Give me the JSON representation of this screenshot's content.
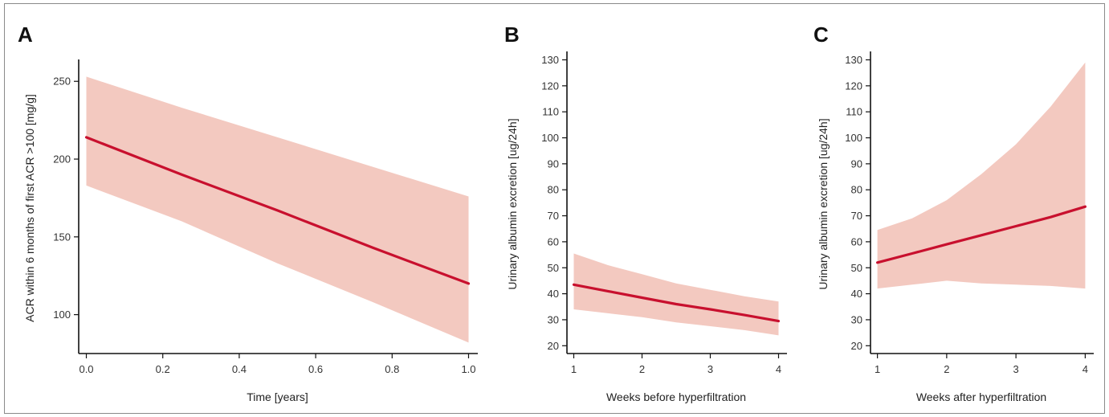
{
  "chart_data": [
    {
      "type": "line",
      "panel": "A",
      "title": "",
      "xlabel": "Time [years]",
      "ylabel": "ACR within 6 months of first ACR >100 [mg/g]",
      "xlim": [
        -0.02,
        1.02
      ],
      "ylim": [
        75,
        262
      ],
      "xticks": [
        0.0,
        0.2,
        0.4,
        0.6,
        0.8,
        1.0
      ],
      "xtick_labels": [
        "0.0",
        "0.2",
        "0.4",
        "0.6",
        "0.8",
        "1.0"
      ],
      "yticks": [
        100,
        150,
        200,
        250
      ],
      "ytick_labels": [
        "100",
        "150",
        "200",
        "250"
      ],
      "grid": false,
      "series": [
        {
          "x": [
            0.0,
            0.25,
            0.5,
            0.75,
            1.0
          ],
          "y": [
            214,
            190,
            167,
            143,
            120
          ],
          "lower": [
            183,
            160,
            133,
            108,
            82
          ],
          "upper": [
            253,
            233,
            214,
            195,
            176
          ]
        }
      ],
      "colors": {
        "line": "#c8102e",
        "band": "#f3c9c0"
      }
    },
    {
      "type": "line",
      "panel": "B",
      "title": "",
      "xlabel": "Weeks before hyperfiltration",
      "ylabel": "Urinary albumin excretion [ug/24h]",
      "xlim": [
        0.9,
        4.1
      ],
      "ylim": [
        17,
        132
      ],
      "xticks": [
        1,
        2,
        3,
        4
      ],
      "xtick_labels": [
        "1",
        "2",
        "3",
        "4"
      ],
      "yticks": [
        20,
        30,
        40,
        50,
        60,
        70,
        80,
        90,
        100,
        110,
        120,
        130
      ],
      "ytick_labels": [
        "20",
        "30",
        "40",
        "50",
        "60",
        "70",
        "80",
        "90",
        "100",
        "110",
        "120",
        "130"
      ],
      "grid": false,
      "series": [
        {
          "x": [
            1,
            1.5,
            2,
            2.5,
            3,
            3.5,
            4
          ],
          "y": [
            43.5,
            41,
            38.5,
            36,
            34,
            31.8,
            29.5
          ],
          "lower": [
            34,
            32.5,
            31,
            29,
            27.5,
            26,
            24
          ],
          "upper": [
            55.5,
            51,
            47.5,
            44,
            41.5,
            39,
            37
          ]
        }
      ],
      "colors": {
        "line": "#c8102e",
        "band": "#f3c9c0"
      }
    },
    {
      "type": "line",
      "panel": "C",
      "title": "",
      "xlabel": "Weeks after hyperfiltration",
      "ylabel": "Urinary albumin excretion [ug/24h]",
      "xlim": [
        0.9,
        4.1
      ],
      "ylim": [
        17,
        132
      ],
      "xticks": [
        1,
        2,
        3,
        4
      ],
      "xtick_labels": [
        "1",
        "2",
        "3",
        "4"
      ],
      "yticks": [
        20,
        30,
        40,
        50,
        60,
        70,
        80,
        90,
        100,
        110,
        120,
        130
      ],
      "ytick_labels": [
        "20",
        "30",
        "40",
        "50",
        "60",
        "70",
        "80",
        "90",
        "100",
        "110",
        "120",
        "130"
      ],
      "grid": false,
      "series": [
        {
          "x": [
            1,
            1.5,
            2,
            2.5,
            3,
            3.5,
            4
          ],
          "y": [
            52,
            55.5,
            59,
            62.5,
            66,
            69.5,
            73.5
          ],
          "lower": [
            42,
            43.5,
            45,
            44,
            43.5,
            43,
            42
          ],
          "upper": [
            64.5,
            69,
            76,
            86,
            97.5,
            112,
            129
          ]
        }
      ],
      "colors": {
        "line": "#c8102e",
        "band": "#f3c9c0"
      }
    }
  ]
}
